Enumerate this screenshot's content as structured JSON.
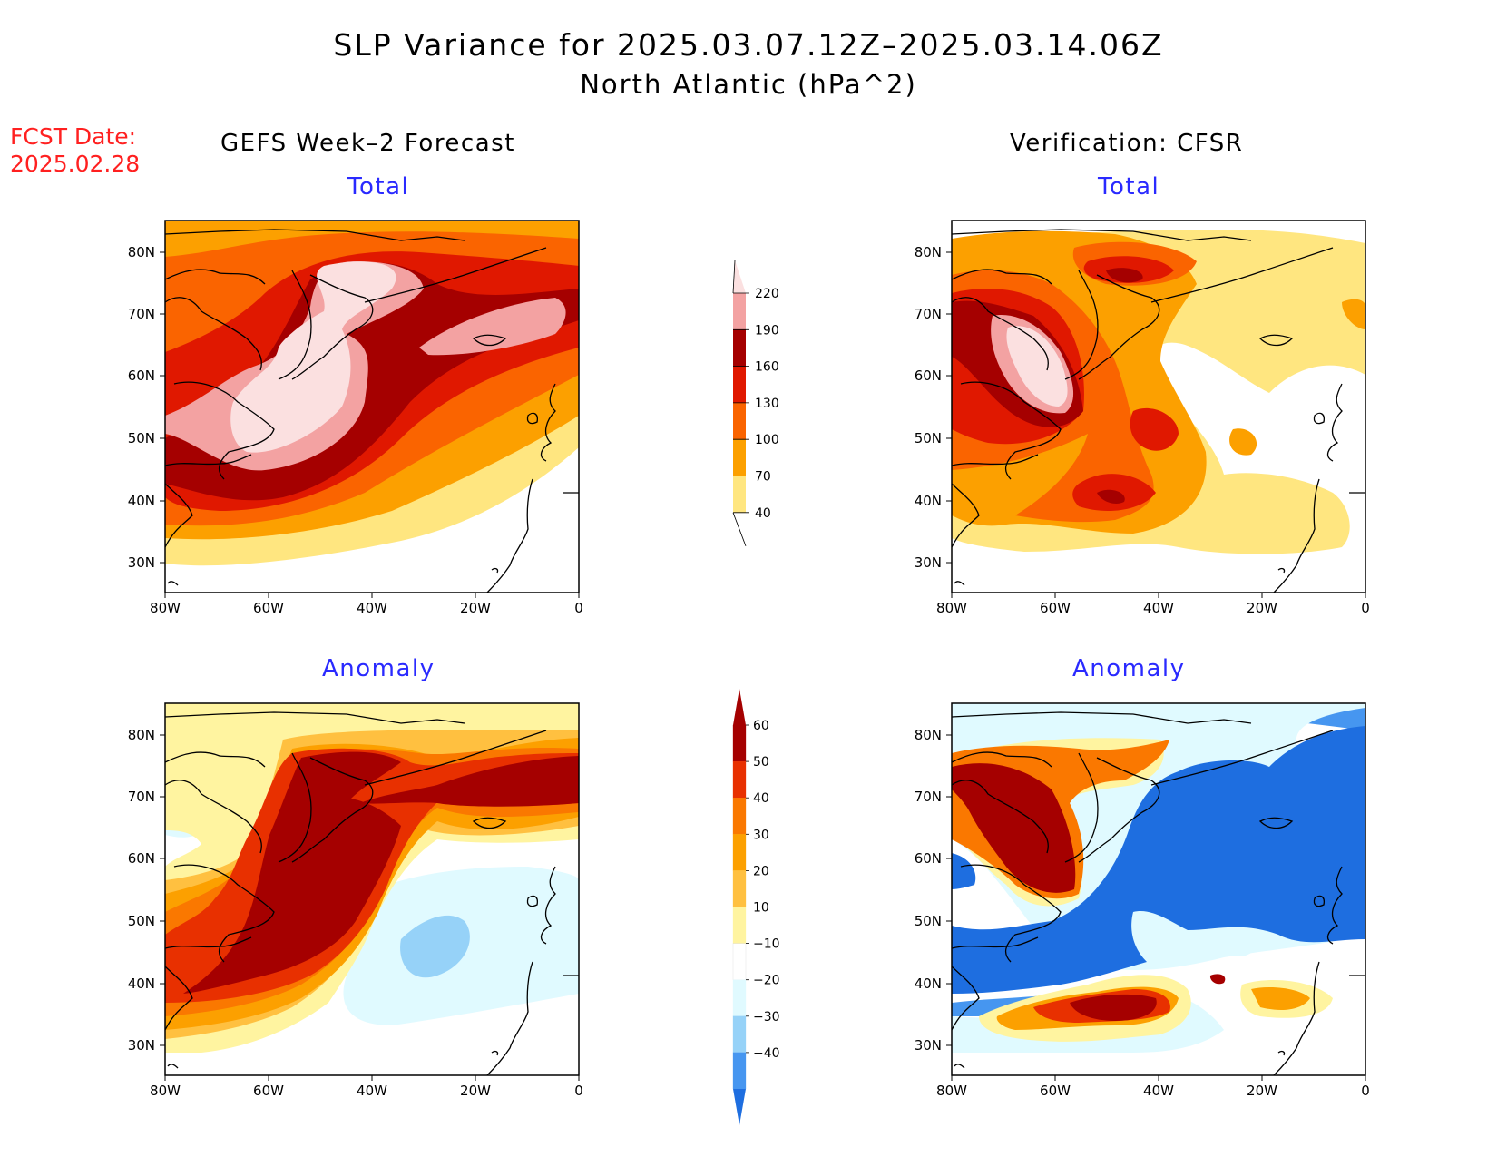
{
  "title": {
    "line1": "SLP Variance for 2025.03.07.12Z–2025.03.14.06Z",
    "line2": "North Atlantic (hPa^2)"
  },
  "forecast_date": {
    "label": "FCST Date:",
    "value": "2025.02.28"
  },
  "columns": {
    "left_heading": "GEFS Week–2 Forecast",
    "right_heading": "Verification: CFSR"
  },
  "panel_titles": {
    "total": "Total",
    "anomaly": "Anomaly"
  },
  "axes": {
    "lon_labels": [
      "80W",
      "60W",
      "40W",
      "20W",
      "0"
    ],
    "lat_labels": [
      "80N",
      "70N",
      "60N",
      "50N",
      "40N",
      "30N"
    ]
  },
  "colorbars": {
    "total": {
      "levels": [
        "220",
        "190",
        "160",
        "130",
        "100",
        "70",
        "40"
      ],
      "colors": [
        "#fbe0e0",
        "#f3a2a2",
        "#a50000",
        "#e01800",
        "#fa6400",
        "#fca000",
        "#ffe680"
      ]
    },
    "anomaly": {
      "levels": [
        "60",
        "50",
        "40",
        "30",
        "20",
        "10",
        "−10",
        "−20",
        "−30",
        "−40"
      ],
      "colors": [
        "#a50000",
        "#a50000",
        "#e83000",
        "#fa7800",
        "#fca000",
        "#ffc040",
        "#fff4a0",
        "#ffffff",
        "#e0faff",
        "#96d2f8",
        "#4696f0",
        "#1e6ee0"
      ]
    }
  }
}
